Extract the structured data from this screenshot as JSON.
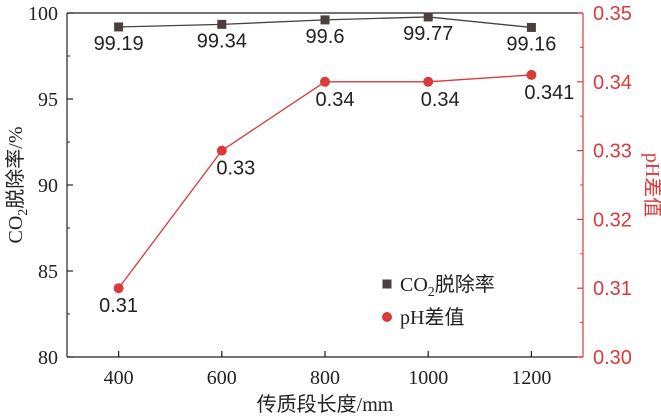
{
  "chart_data": {
    "type": "line",
    "title": "",
    "xlabel": "传质段长度/mm",
    "ylabel_left": {
      "pre": "CO",
      "sub": "2",
      "post": "脱除率/%"
    },
    "ylabel_right": "pH差值",
    "x": [
      400,
      600,
      800,
      1000,
      1200
    ],
    "x_ticks": [
      "400",
      "600",
      "800",
      "1000",
      "1200"
    ],
    "xlim": [
      300,
      1300
    ],
    "y_left_lim": [
      80,
      100
    ],
    "y_left_ticks": [
      "80",
      "85",
      "90",
      "95",
      "100"
    ],
    "y_right_lim": [
      0.3,
      0.35
    ],
    "y_right_ticks": [
      "0.30",
      "0.31",
      "0.32",
      "0.33",
      "0.34",
      "0.35"
    ],
    "series": [
      {
        "legend": {
          "pre": "CO",
          "sub": "2",
          "post": "脱除率"
        },
        "axis": "left",
        "marker": "square",
        "color": "#4a4040",
        "values": [
          99.19,
          99.34,
          99.6,
          99.77,
          99.16
        ],
        "labels": [
          "99.19",
          "99.34",
          "99.6",
          "99.77",
          "99.16"
        ]
      },
      {
        "legend": {
          "pre": "pH差值",
          "sub": "",
          "post": ""
        },
        "axis": "right",
        "marker": "circle",
        "color": "#d93a3a",
        "values": [
          0.31,
          0.33,
          0.34,
          0.34,
          0.341
        ],
        "labels": [
          "0.31",
          "0.33",
          "0.34",
          "0.34",
          "0.341"
        ]
      }
    ],
    "legend_position": "bottom-right",
    "grid": false
  }
}
